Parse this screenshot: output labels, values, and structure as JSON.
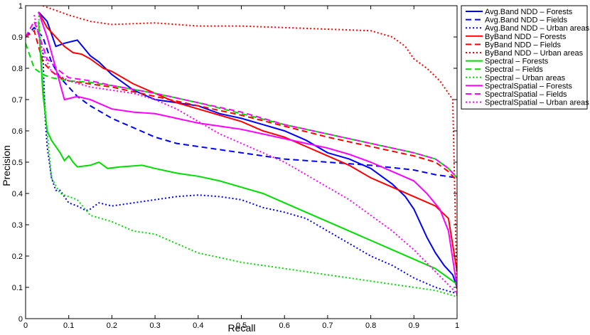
{
  "chart_data": {
    "type": "line",
    "title": "",
    "xlabel": "Recall",
    "ylabel": "Precision",
    "xlim": [
      0,
      1
    ],
    "ylim": [
      0,
      1
    ],
    "xticks": [
      0,
      0.1,
      0.2,
      0.3,
      0.4,
      0.5,
      0.6,
      0.7,
      0.8,
      0.9,
      1
    ],
    "yticks": [
      0,
      0.1,
      0.2,
      0.3,
      0.4,
      0.5,
      0.6,
      0.7,
      0.8,
      0.9,
      1
    ],
    "xtick_labels": [
      "0",
      "0.1",
      "0.2",
      "0.3",
      "0.4",
      "0.5",
      "0.6",
      "0.7",
      "0.8",
      "0.9",
      "1"
    ],
    "ytick_labels": [
      "0",
      "0.1",
      "0.2",
      "0.3",
      "0.4",
      "0.5",
      "0.6",
      "0.7",
      "0.8",
      "0.9",
      "1"
    ],
    "grid": false,
    "legend_position": "top-right, outside plot",
    "series": [
      {
        "name": "Avg.Band NDD – Forests",
        "color": "#0000ff",
        "dash": "solid",
        "x": [
          0.03,
          0.05,
          0.07,
          0.09,
          0.12,
          0.15,
          0.17,
          0.2,
          0.25,
          0.3,
          0.35,
          0.4,
          0.45,
          0.5,
          0.55,
          0.6,
          0.65,
          0.7,
          0.75,
          0.8,
          0.85,
          0.88,
          0.9,
          0.93,
          0.95,
          0.97,
          0.99,
          1.0
        ],
        "y": [
          0.98,
          0.95,
          0.87,
          0.88,
          0.89,
          0.84,
          0.82,
          0.78,
          0.73,
          0.7,
          0.69,
          0.68,
          0.655,
          0.64,
          0.62,
          0.6,
          0.57,
          0.53,
          0.51,
          0.48,
          0.43,
          0.39,
          0.35,
          0.26,
          0.21,
          0.17,
          0.14,
          0.1
        ]
      },
      {
        "name": "Avg.Band NDD – Fields",
        "color": "#0000ff",
        "dash": "dashed",
        "x": [
          0.0,
          0.02,
          0.04,
          0.06,
          0.08,
          0.1,
          0.12,
          0.15,
          0.2,
          0.25,
          0.3,
          0.35,
          0.4,
          0.5,
          0.6,
          0.7,
          0.8,
          0.9,
          0.95,
          1.0
        ],
        "y": [
          0.9,
          0.93,
          0.9,
          0.82,
          0.77,
          0.74,
          0.71,
          0.68,
          0.64,
          0.61,
          0.58,
          0.56,
          0.55,
          0.53,
          0.51,
          0.5,
          0.49,
          0.475,
          0.46,
          0.45
        ]
      },
      {
        "name": "Avg.Band NDD – Urban areas",
        "color": "#0000ff",
        "dash": "dotted",
        "x": [
          0.04,
          0.045,
          0.05,
          0.06,
          0.07,
          0.08,
          0.09,
          0.1,
          0.12,
          0.14,
          0.15,
          0.17,
          0.2,
          0.25,
          0.3,
          0.35,
          0.4,
          0.45,
          0.5,
          0.55,
          0.6,
          0.65,
          0.7,
          0.75,
          0.8,
          0.85,
          0.9,
          0.95,
          1.0
        ],
        "y": [
          0.85,
          0.65,
          0.55,
          0.45,
          0.41,
          0.41,
          0.39,
          0.37,
          0.36,
          0.345,
          0.35,
          0.37,
          0.36,
          0.37,
          0.38,
          0.39,
          0.395,
          0.39,
          0.38,
          0.355,
          0.34,
          0.32,
          0.28,
          0.24,
          0.2,
          0.17,
          0.13,
          0.1,
          0.08
        ]
      },
      {
        "name": "ByBand NDD – Forests",
        "color": "#ff0000",
        "dash": "solid",
        "x": [
          0.03,
          0.05,
          0.07,
          0.09,
          0.11,
          0.13,
          0.15,
          0.18,
          0.2,
          0.25,
          0.3,
          0.35,
          0.4,
          0.45,
          0.5,
          0.55,
          0.6,
          0.65,
          0.7,
          0.75,
          0.8,
          0.85,
          0.9,
          0.95,
          0.98,
          1.0
        ],
        "y": [
          0.98,
          0.93,
          0.9,
          0.87,
          0.85,
          0.845,
          0.83,
          0.8,
          0.79,
          0.75,
          0.72,
          0.69,
          0.67,
          0.65,
          0.63,
          0.6,
          0.58,
          0.55,
          0.52,
          0.49,
          0.45,
          0.42,
          0.39,
          0.36,
          0.32,
          0.15
        ]
      },
      {
        "name": "ByBand NDD – Fields",
        "color": "#ff0000",
        "dash": "dashed",
        "x": [
          0.0,
          0.02,
          0.04,
          0.06,
          0.08,
          0.1,
          0.15,
          0.2,
          0.3,
          0.4,
          0.5,
          0.6,
          0.7,
          0.8,
          0.9,
          0.95,
          0.98,
          1.0
        ],
        "y": [
          0.9,
          0.92,
          0.82,
          0.79,
          0.77,
          0.76,
          0.75,
          0.74,
          0.71,
          0.68,
          0.65,
          0.615,
          0.58,
          0.55,
          0.52,
          0.5,
          0.47,
          0.44
        ]
      },
      {
        "name": "ByBand NDD – Urban areas",
        "color": "#ff0000",
        "dash": "dotted",
        "x": [
          0.04,
          0.06,
          0.1,
          0.15,
          0.2,
          0.3,
          0.4,
          0.5,
          0.6,
          0.7,
          0.8,
          0.85,
          0.88,
          0.9,
          0.93,
          0.96,
          0.98,
          0.99,
          1.0
        ],
        "y": [
          1.0,
          0.99,
          0.97,
          0.95,
          0.94,
          0.945,
          0.935,
          0.935,
          0.93,
          0.925,
          0.92,
          0.9,
          0.87,
          0.83,
          0.8,
          0.76,
          0.72,
          0.7,
          0.07
        ]
      },
      {
        "name": "Spectral – Forests",
        "color": "#00dd00",
        "dash": "solid",
        "x": [
          0.03,
          0.04,
          0.05,
          0.06,
          0.08,
          0.09,
          0.1,
          0.11,
          0.12,
          0.15,
          0.17,
          0.19,
          0.22,
          0.27,
          0.3,
          0.35,
          0.4,
          0.45,
          0.5,
          0.55,
          0.6,
          0.65,
          0.7,
          0.75,
          0.8,
          0.85,
          0.9,
          0.95,
          1.0
        ],
        "y": [
          0.95,
          0.72,
          0.6,
          0.57,
          0.53,
          0.505,
          0.52,
          0.5,
          0.485,
          0.49,
          0.5,
          0.48,
          0.485,
          0.49,
          0.48,
          0.465,
          0.455,
          0.44,
          0.42,
          0.4,
          0.37,
          0.34,
          0.31,
          0.28,
          0.25,
          0.22,
          0.19,
          0.16,
          0.11
        ]
      },
      {
        "name": "Spectral – Fields",
        "color": "#00dd00",
        "dash": "dashed",
        "x": [
          0.0,
          0.02,
          0.04,
          0.06,
          0.1,
          0.15,
          0.2,
          0.3,
          0.4,
          0.5,
          0.6,
          0.7,
          0.8,
          0.9,
          0.95,
          0.98,
          1.0
        ],
        "y": [
          0.88,
          0.8,
          0.78,
          0.77,
          0.76,
          0.755,
          0.745,
          0.72,
          0.69,
          0.655,
          0.62,
          0.59,
          0.56,
          0.53,
          0.51,
          0.48,
          0.45
        ]
      },
      {
        "name": "Spectral – Urban areas",
        "color": "#00dd00",
        "dash": "dotted",
        "x": [
          0.03,
          0.04,
          0.05,
          0.06,
          0.08,
          0.1,
          0.12,
          0.15,
          0.2,
          0.25,
          0.3,
          0.35,
          0.4,
          0.45,
          0.5,
          0.55,
          0.6,
          0.65,
          0.7,
          0.75,
          0.8,
          0.85,
          0.9,
          0.95,
          1.0
        ],
        "y": [
          0.98,
          0.75,
          0.6,
          0.45,
          0.4,
          0.39,
          0.38,
          0.33,
          0.31,
          0.28,
          0.27,
          0.24,
          0.21,
          0.195,
          0.18,
          0.17,
          0.16,
          0.15,
          0.14,
          0.13,
          0.12,
          0.11,
          0.1,
          0.09,
          0.07
        ]
      },
      {
        "name": "SpectralSpatial – Forests",
        "color": "#ff00ff",
        "dash": "solid",
        "x": [
          0.03,
          0.05,
          0.07,
          0.09,
          0.12,
          0.15,
          0.2,
          0.25,
          0.3,
          0.35,
          0.4,
          0.45,
          0.5,
          0.55,
          0.6,
          0.65,
          0.7,
          0.75,
          0.8,
          0.85,
          0.9,
          0.93,
          0.96,
          0.98,
          1.0
        ],
        "y": [
          0.98,
          0.9,
          0.8,
          0.7,
          0.71,
          0.7,
          0.67,
          0.66,
          0.655,
          0.64,
          0.625,
          0.615,
          0.605,
          0.59,
          0.575,
          0.56,
          0.545,
          0.525,
          0.5,
          0.47,
          0.44,
          0.4,
          0.35,
          0.28,
          0.1
        ]
      },
      {
        "name": "SpectralSpatial – Fields",
        "color": "#ff00ff",
        "dash": "dashed",
        "x": [
          0.0,
          0.02,
          0.05,
          0.08,
          0.1,
          0.15,
          0.2,
          0.3,
          0.4,
          0.5,
          0.6,
          0.7,
          0.8,
          0.9,
          0.95,
          0.98,
          1.0
        ],
        "y": [
          0.9,
          0.95,
          0.83,
          0.79,
          0.77,
          0.76,
          0.745,
          0.72,
          0.69,
          0.66,
          0.62,
          0.59,
          0.56,
          0.53,
          0.51,
          0.48,
          0.45
        ]
      },
      {
        "name": "SpectralSpatial – Urban areas",
        "color": "#ff00ff",
        "dash": "dotted",
        "x": [
          0.02,
          0.04,
          0.06,
          0.1,
          0.15,
          0.2,
          0.25,
          0.3,
          0.35,
          0.4,
          0.45,
          0.5,
          0.55,
          0.6,
          0.65,
          0.7,
          0.75,
          0.8,
          0.85,
          0.9,
          0.95,
          1.0
        ],
        "y": [
          0.97,
          0.85,
          0.79,
          0.76,
          0.74,
          0.73,
          0.72,
          0.7,
          0.67,
          0.63,
          0.59,
          0.56,
          0.53,
          0.5,
          0.46,
          0.42,
          0.38,
          0.33,
          0.28,
          0.22,
          0.15,
          0.08
        ]
      }
    ]
  }
}
